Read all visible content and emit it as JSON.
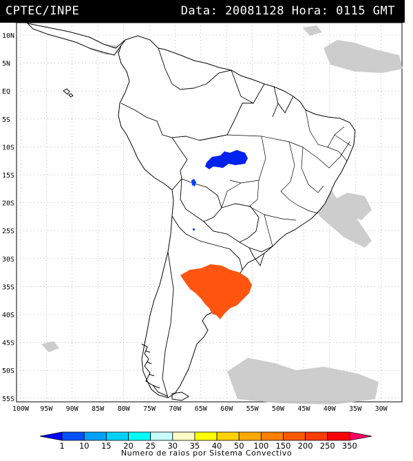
{
  "header": {
    "source": "CPTEC/INPE",
    "datetime": "Data: 20081128 Hora: 0115 GMT"
  },
  "map": {
    "lat_labels": [
      "10N",
      "5N",
      "EQ",
      "5S",
      "10S",
      "15S",
      "20S",
      "25S",
      "30S",
      "35S",
      "40S",
      "45S",
      "50S",
      "55S"
    ],
    "lon_labels": [
      "100W",
      "95W",
      "90W",
      "85W",
      "80W",
      "75W",
      "70W",
      "65W",
      "60W",
      "55W",
      "50W",
      "45W",
      "40W",
      "35W",
      "30W"
    ]
  },
  "legend": {
    "values": [
      "1",
      "10",
      "15",
      "20",
      "25",
      "30",
      "35",
      "40",
      "50",
      "100",
      "150",
      "200",
      "250",
      "350"
    ],
    "colors": [
      "#0000ff",
      "#0050ff",
      "#00a0ff",
      "#00d2ff",
      "#00ffff",
      "#c8ffff",
      "#ffffc8",
      "#ffff00",
      "#ffd200",
      "#ffaa00",
      "#ff8000",
      "#ff5a00",
      "#ff3c00",
      "#ff0000",
      "#ff0064"
    ],
    "caption": "Numero de raios por Sistema Convectivo"
  },
  "systems": {
    "blue_color": "#0022ee",
    "orange_color": "#ff5511",
    "cloud_color": "#c8c8c8"
  }
}
